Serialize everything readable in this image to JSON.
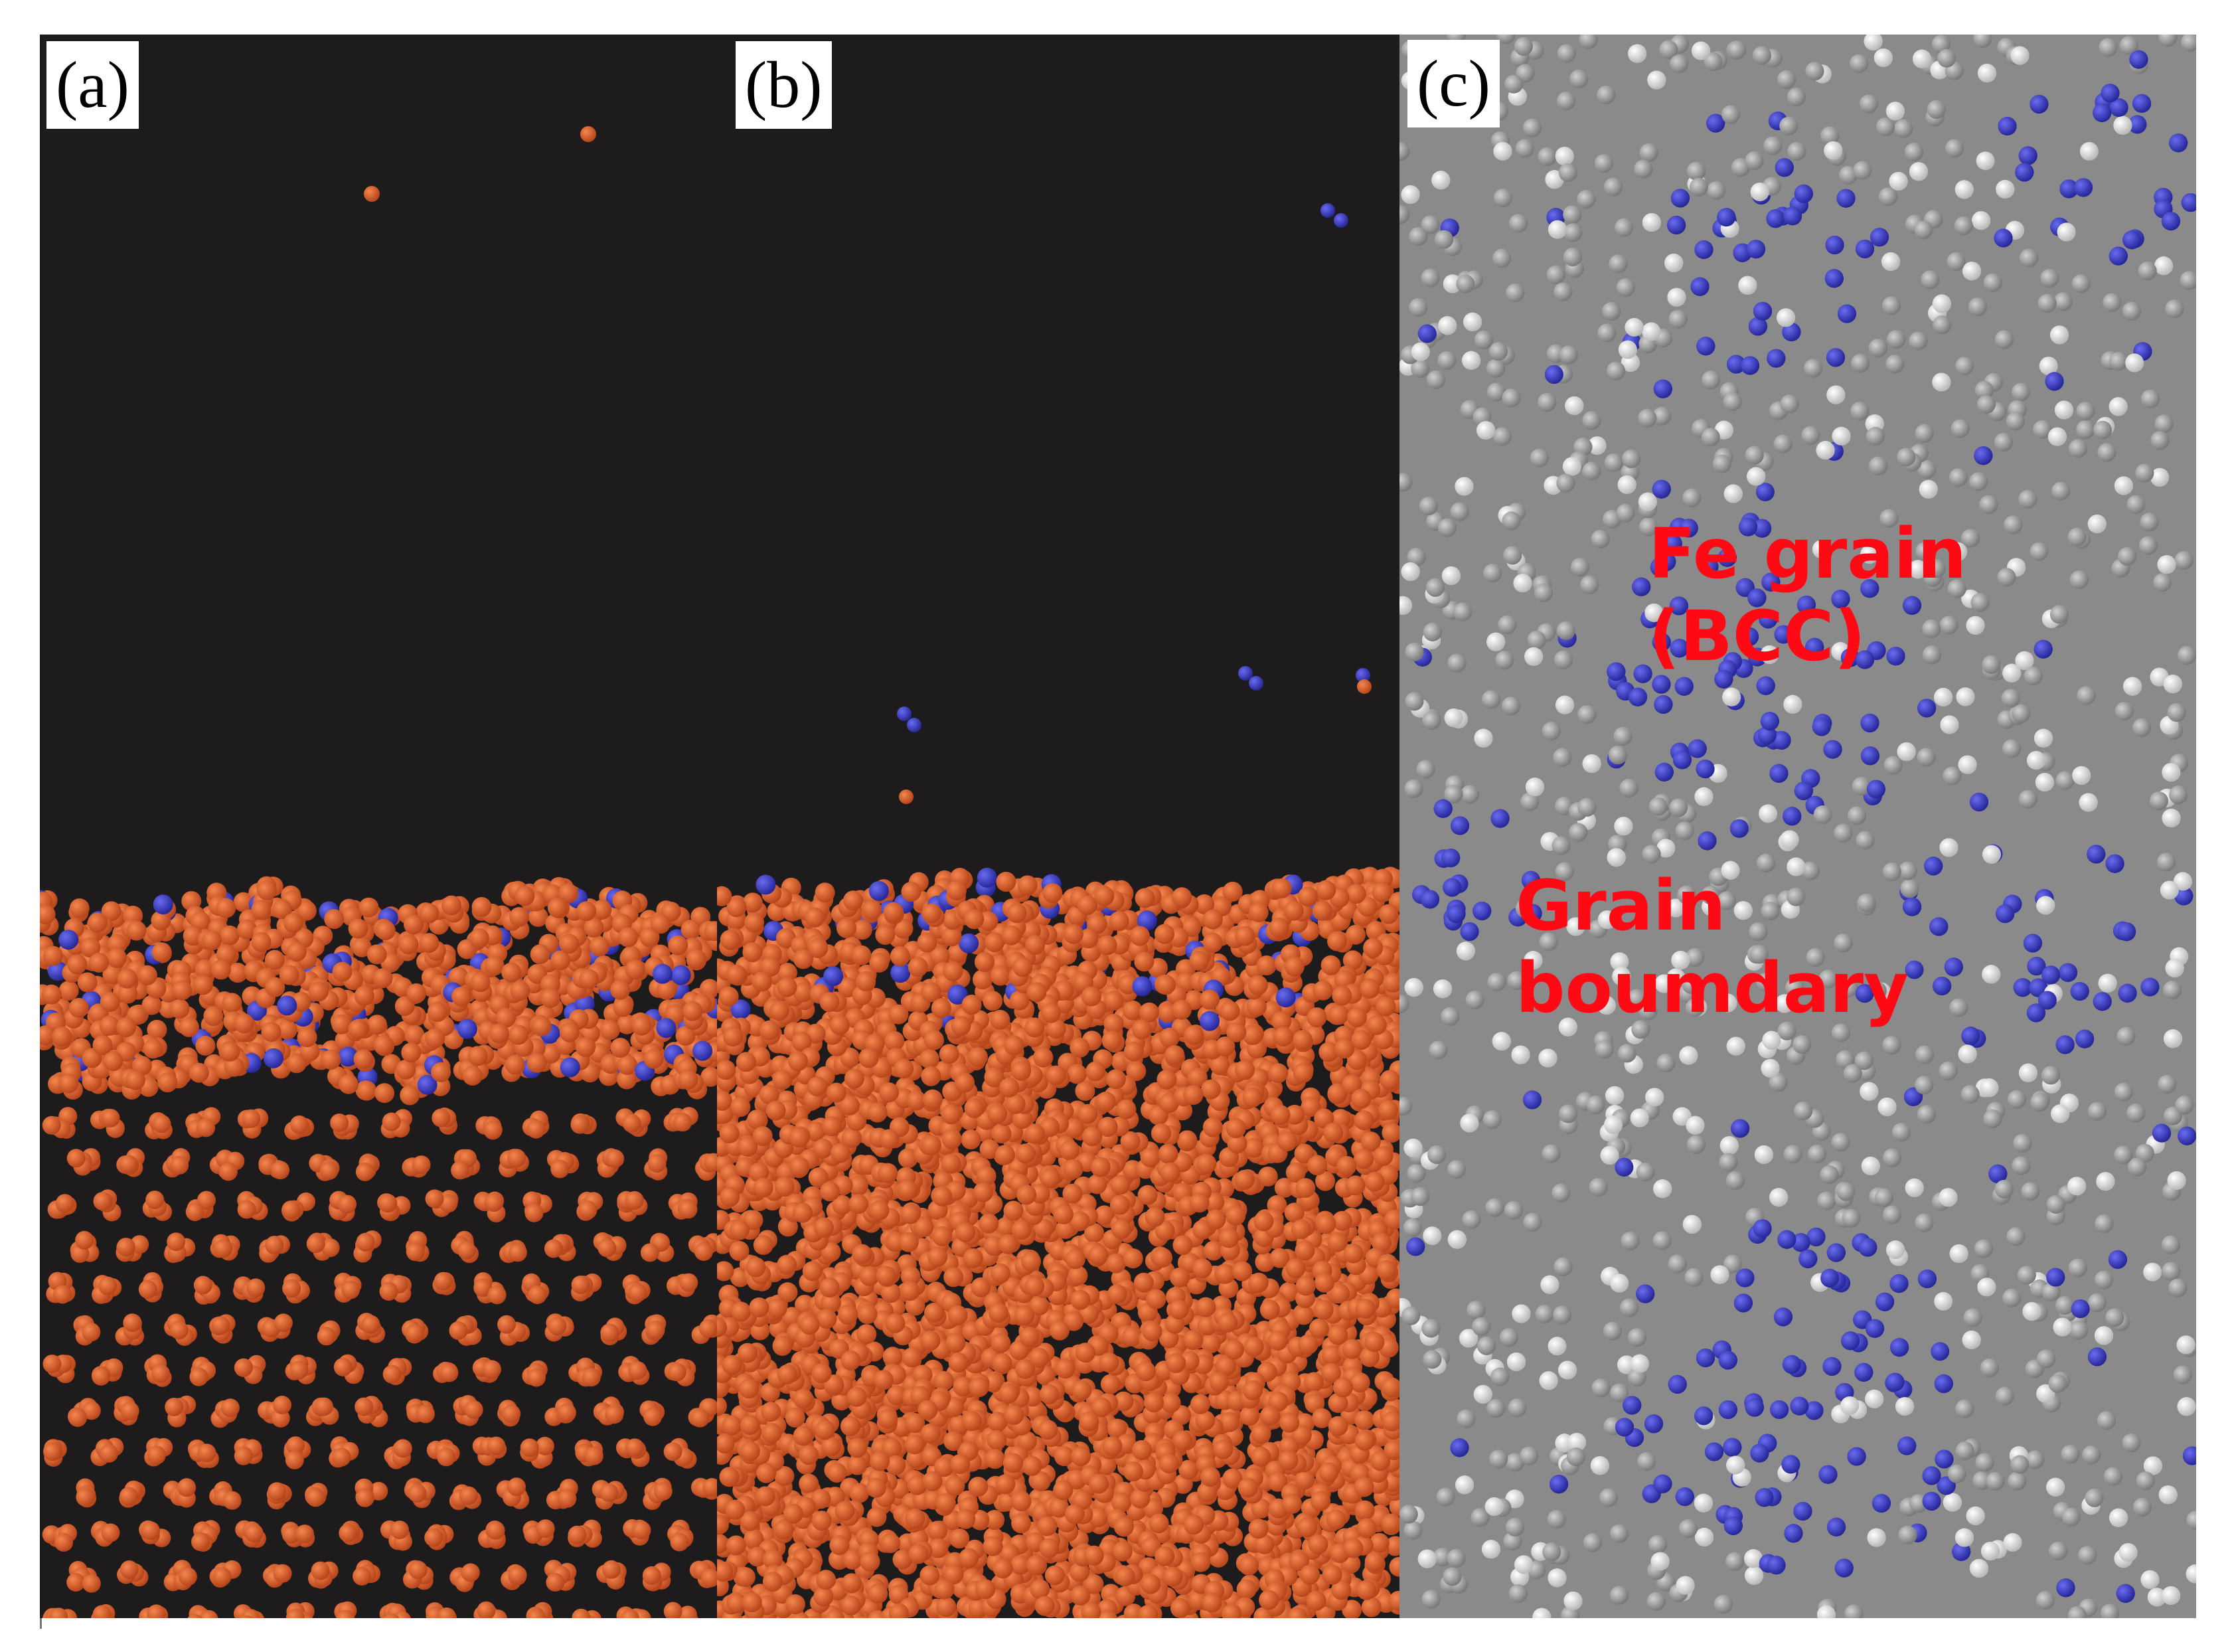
{
  "panels": {
    "a": {
      "label": "(a)"
    },
    "b": {
      "label": "(b)"
    },
    "c": {
      "label": "(c)",
      "annotation_grain": "Fe grain\n(BCC)",
      "annotation_boundary": "Grain\nboumdary"
    }
  },
  "colors": {
    "background": "#1d1b1c",
    "fe_atom": "#e8622f",
    "fe_atom_highlight": "#f4874f",
    "bcc_atom": "#3f41c8",
    "grey_atom": "#a9a9a9",
    "white_atom": "#e6e6e6",
    "annotation_text": "#ff0a14"
  }
}
